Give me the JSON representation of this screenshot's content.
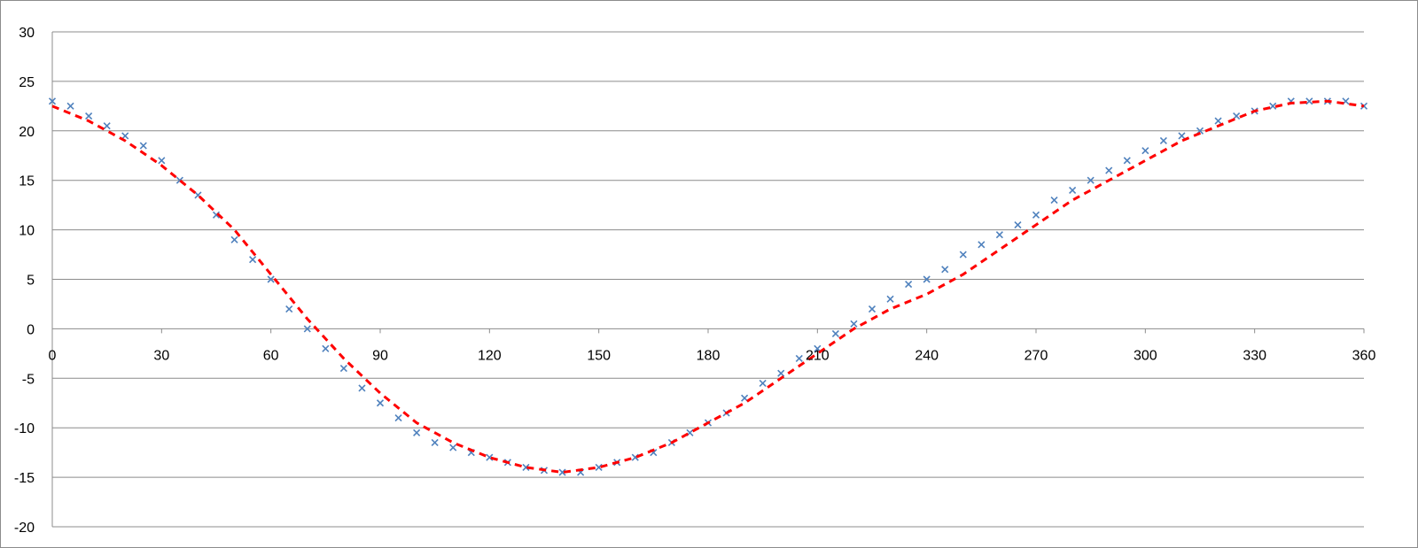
{
  "chart_data": {
    "type": "scatter",
    "title": "",
    "xlabel": "",
    "ylabel": "",
    "xlim": [
      0,
      360
    ],
    "ylim": [
      -20,
      30
    ],
    "x_ticks": [
      0,
      30,
      60,
      90,
      120,
      150,
      180,
      210,
      240,
      270,
      300,
      330,
      360
    ],
    "y_ticks": [
      -20,
      -15,
      -10,
      -5,
      0,
      5,
      10,
      15,
      20,
      25,
      30
    ],
    "x_tick_labels": [
      "0",
      "30",
      "60",
      "90",
      "120",
      "150",
      "180",
      "210",
      "240",
      "270",
      "300",
      "330",
      "360"
    ],
    "y_tick_labels": [
      "-20",
      "-15",
      "-10",
      "-5",
      "0",
      "5",
      "10",
      "15",
      "20",
      "25",
      "30"
    ],
    "grid": "horizontal",
    "legend": "none",
    "series": [
      {
        "marker": "x",
        "color": "#4f81bd",
        "x": [
          0,
          5,
          10,
          15,
          20,
          25,
          30,
          35,
          40,
          45,
          50,
          55,
          60,
          65,
          70,
          75,
          80,
          85,
          90,
          95,
          100,
          105,
          110,
          115,
          120,
          125,
          130,
          135,
          140,
          145,
          150,
          155,
          160,
          165,
          170,
          175,
          180,
          185,
          190,
          195,
          200,
          205,
          210,
          215,
          220,
          225,
          230,
          235,
          240,
          245,
          250,
          255,
          260,
          265,
          270,
          275,
          280,
          285,
          290,
          295,
          300,
          305,
          310,
          315,
          320,
          325,
          330,
          335,
          340,
          345,
          350,
          355,
          360
        ],
        "y": [
          23.0,
          22.5,
          21.5,
          20.5,
          19.5,
          18.5,
          17.0,
          15.0,
          13.5,
          11.5,
          9.0,
          7.0,
          5.0,
          2.0,
          0.0,
          -2.0,
          -4.0,
          -6.0,
          -7.5,
          -9.0,
          -10.5,
          -11.5,
          -12.0,
          -12.5,
          -13.0,
          -13.5,
          -14.0,
          -14.3,
          -14.5,
          -14.5,
          -14.0,
          -13.5,
          -13.0,
          -12.5,
          -11.5,
          -10.5,
          -9.5,
          -8.5,
          -7.0,
          -5.5,
          -4.5,
          -3.0,
          -2.0,
          -0.5,
          0.5,
          2.0,
          3.0,
          4.5,
          5.0,
          6.0,
          7.5,
          8.5,
          9.5,
          10.5,
          11.5,
          13.0,
          14.0,
          15.0,
          16.0,
          17.0,
          18.0,
          19.0,
          19.5,
          20.0,
          21.0,
          21.5,
          22.0,
          22.5,
          23.0,
          23.0,
          23.0,
          23.0,
          22.5
        ]
      },
      {
        "style": "dashed-line",
        "color": "#ff0000",
        "x": [
          0,
          10,
          20,
          30,
          40,
          50,
          60,
          70,
          80,
          90,
          100,
          110,
          120,
          130,
          140,
          150,
          160,
          170,
          180,
          190,
          200,
          210,
          220,
          230,
          240,
          250,
          260,
          270,
          280,
          290,
          300,
          310,
          320,
          330,
          340,
          350,
          360
        ],
        "y": [
          22.5,
          21.0,
          19.0,
          16.5,
          13.5,
          10.0,
          5.5,
          1.0,
          -3.0,
          -6.5,
          -9.5,
          -11.5,
          -13.0,
          -14.0,
          -14.5,
          -14.0,
          -13.0,
          -11.5,
          -9.5,
          -7.5,
          -5.0,
          -2.5,
          0.0,
          2.0,
          3.5,
          5.5,
          8.0,
          10.5,
          13.0,
          15.0,
          17.0,
          19.0,
          20.5,
          22.0,
          22.8,
          23.0,
          22.5
        ]
      }
    ]
  }
}
